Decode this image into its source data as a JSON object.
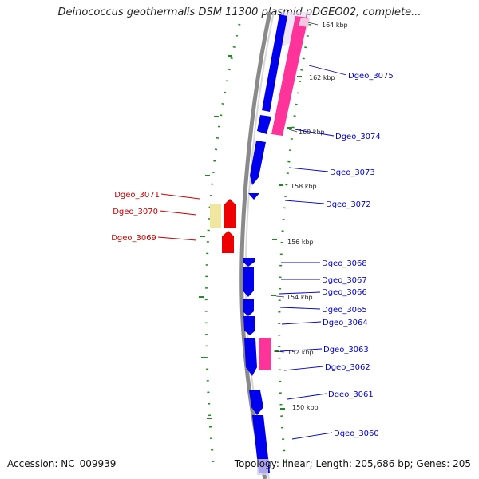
{
  "title": "Deinococcus geothermalis DSM 11300 plasmid pDGEO02, complete...",
  "accession": "Accession: NC_009939",
  "summary": "Topology: linear; Length: 205,686 bp; Genes: 205",
  "colors": {
    "backbone": "#8a8a8a",
    "gc_ticks": "#1e8c1e",
    "gene_forward": "#0000ee",
    "gene_reverse": "#ee0000",
    "pseudo_pink": "#ff3399",
    "pale_yellow": "#f0e6a0",
    "label_forward": "#0000cc",
    "label_reverse": "#cc0000"
  },
  "scale_labels": [
    "164 kbp",
    "162 kbp",
    "160 kbp",
    "158 kbp",
    "156 kbp",
    "154 kbp",
    "152 kbp",
    "150 kbp"
  ],
  "genes_right": [
    "Dgeo_3075",
    "Dgeo_3074",
    "Dgeo_3073",
    "Dgeo_3072",
    "Dgeo_3068",
    "Dgeo_3067",
    "Dgeo_3066",
    "Dgeo_3065",
    "Dgeo_3064",
    "Dgeo_3063",
    "Dgeo_3062",
    "Dgeo_3061",
    "Dgeo_3060"
  ],
  "genes_left": [
    "Dgeo_3071",
    "Dgeo_3070",
    "Dgeo_3069"
  ]
}
